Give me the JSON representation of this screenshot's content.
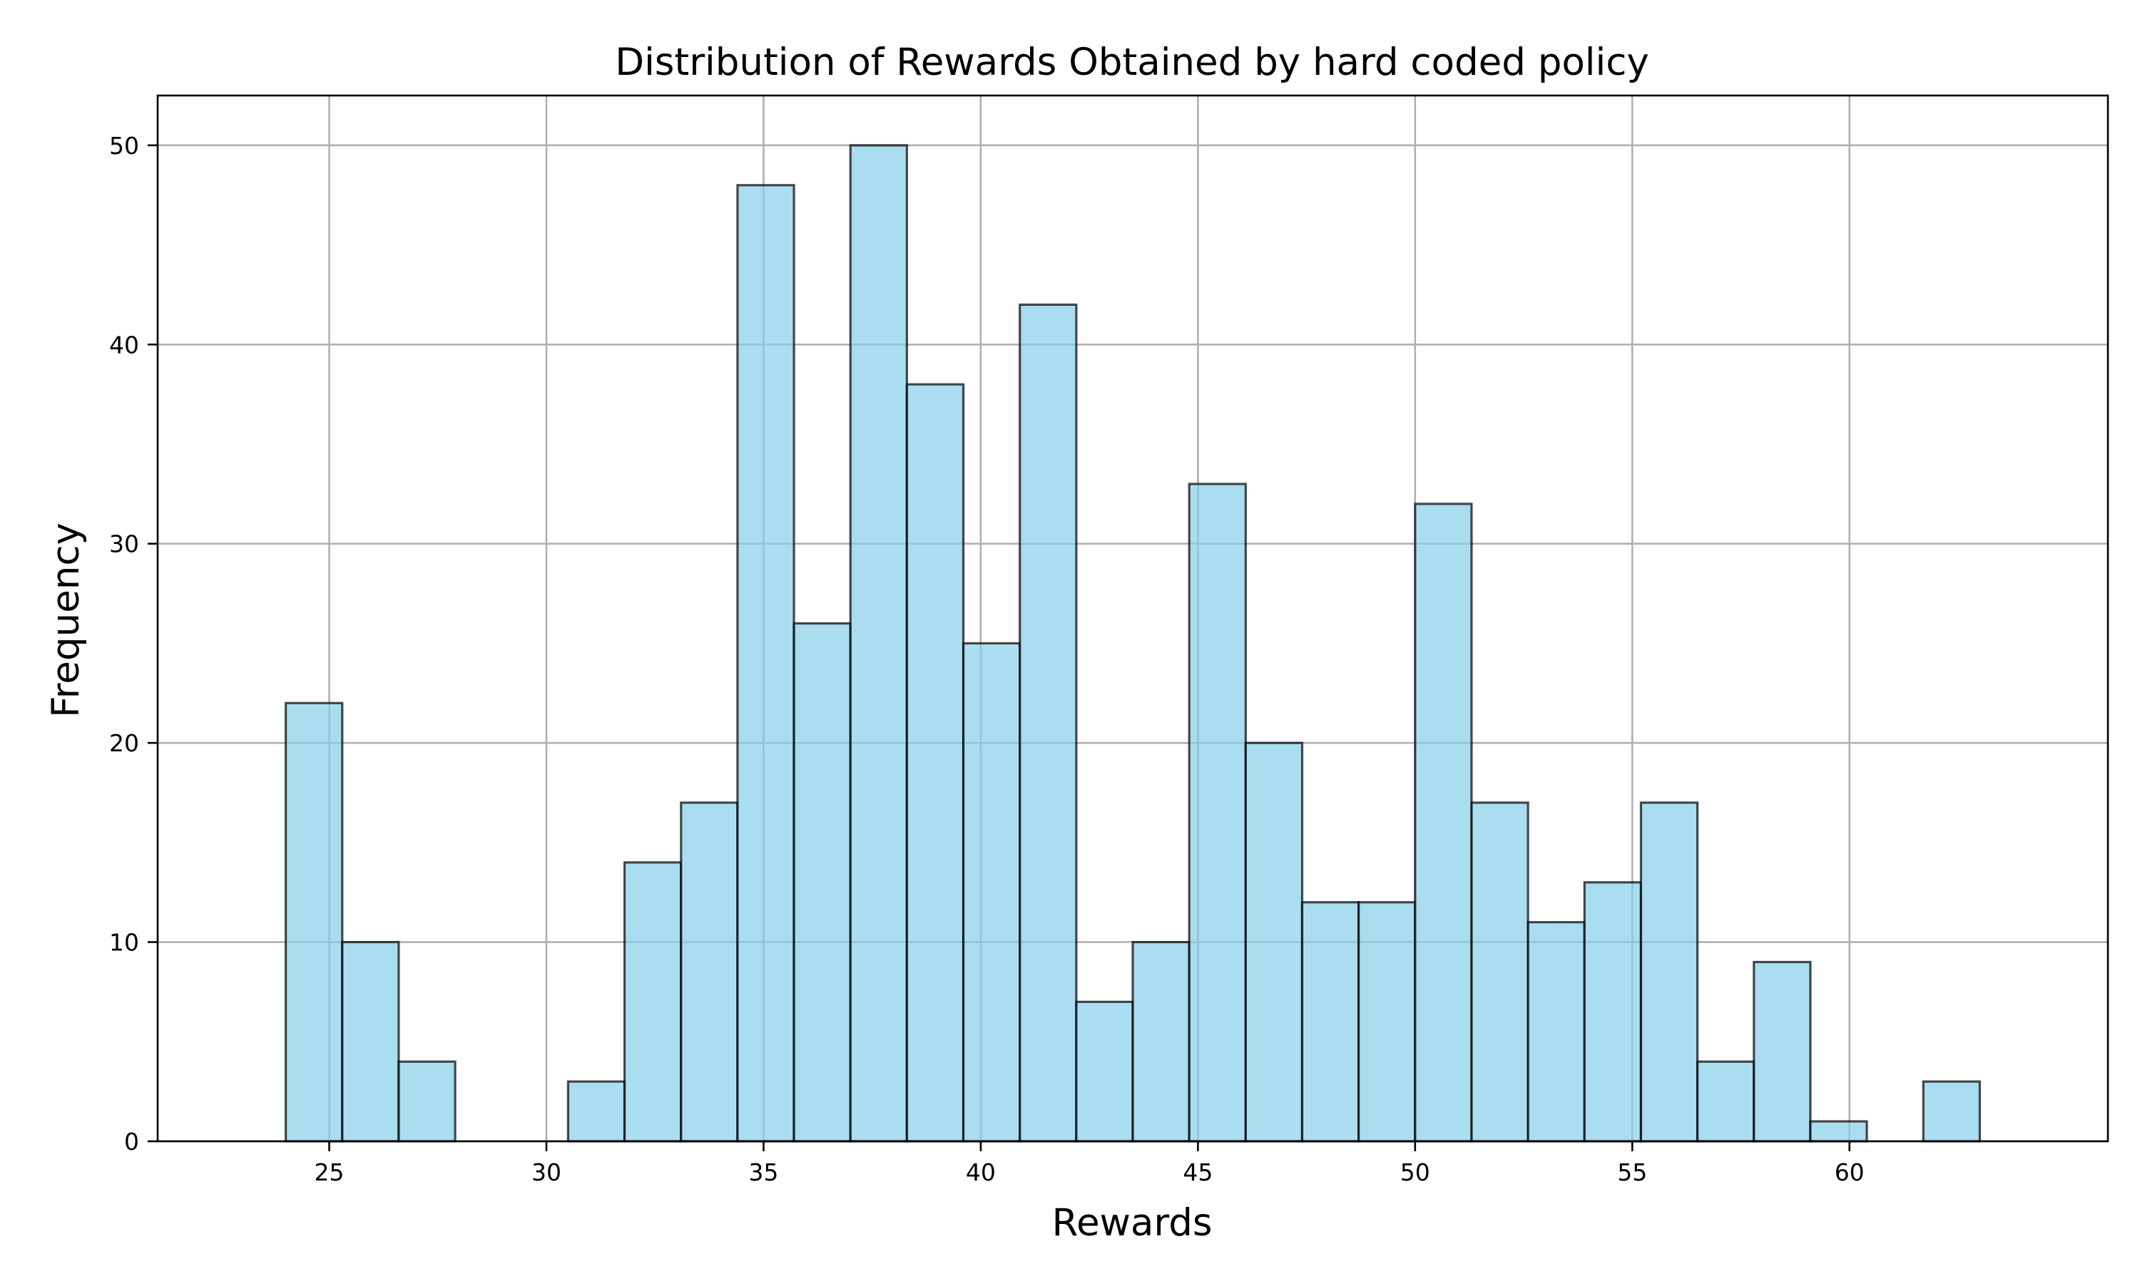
{
  "chart_data": {
    "type": "bar",
    "title": "Distribution of Rewards Obtained by hard coded policy",
    "xlabel": "Rewards",
    "ylabel": "Frequency",
    "bin_edges": [
      24.0,
      25.3,
      26.6,
      27.9,
      29.2,
      30.5,
      31.8,
      33.1,
      34.4,
      35.7,
      37.0,
      38.3,
      39.6,
      40.9,
      42.2,
      43.5,
      44.8,
      46.1,
      47.4,
      48.7,
      50.0,
      51.3,
      52.6,
      53.9,
      55.2,
      56.5,
      57.8,
      59.1,
      60.4,
      61.7,
      63.0
    ],
    "values": [
      22,
      10,
      4,
      0,
      0,
      3,
      14,
      17,
      48,
      26,
      50,
      38,
      25,
      42,
      7,
      10,
      33,
      20,
      12,
      12,
      32,
      17,
      11,
      13,
      17,
      4,
      9,
      1,
      0,
      3
    ],
    "xlim": [
      21.05,
      65.95
    ],
    "ylim": [
      0,
      52.5
    ],
    "xticks": [
      25,
      30,
      35,
      40,
      45,
      50,
      55,
      60
    ],
    "yticks": [
      0,
      10,
      20,
      30,
      40,
      50
    ],
    "grid": true,
    "bar_color": "#87CEEB",
    "bar_alpha": 0.7,
    "edge_color": "#000000"
  }
}
